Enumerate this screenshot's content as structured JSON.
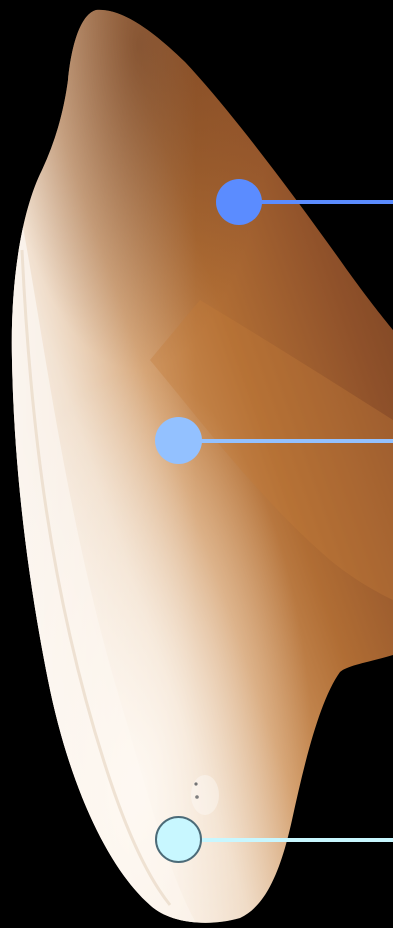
{
  "canvas": {
    "background": "#000000"
  },
  "subject": {
    "icon": "tooth-crown-shape",
    "colors": {
      "tip_brown": "#7a4422",
      "mid_brown": "#a8642e",
      "amber": "#c4803f",
      "tan": "#d9a56d",
      "cream": "#f3e4d5",
      "ivory": "#fbf3ea",
      "highlight": "#fffaf4"
    }
  },
  "markers": [
    {
      "name": "marker-top",
      "color": "#5b8cff",
      "line_color": "#5b8cff",
      "style": "filled"
    },
    {
      "name": "marker-middle",
      "color": "#93c1ff",
      "line_color": "#93c1ff",
      "style": "filled"
    },
    {
      "name": "marker-bottom",
      "color": "#c8f7ff",
      "line_color": "#c8f7ff",
      "style": "outlined",
      "outline_color": "#4c6b78"
    }
  ]
}
